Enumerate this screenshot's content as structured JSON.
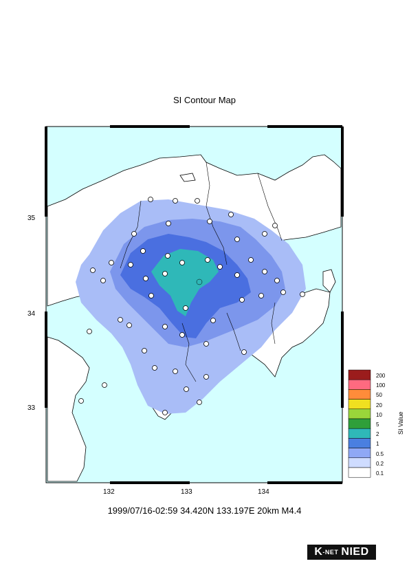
{
  "title": "SI Contour Map",
  "caption": "1999/07/16-02:59 34.420N 133.197E 20km M4.4",
  "axes": {
    "lat_ticks": [
      {
        "label": "35",
        "value": 35
      },
      {
        "label": "34",
        "value": 34
      },
      {
        "label": "33",
        "value": 33
      }
    ],
    "lon_ticks": [
      {
        "label": "132",
        "value": 132
      },
      {
        "label": "133",
        "value": 133
      },
      {
        "label": "134",
        "value": 134
      }
    ]
  },
  "legend": {
    "title": "SI Value",
    "bins": [
      {
        "label": "200",
        "color": "#9b1c1c"
      },
      {
        "label": "100",
        "color": "#ff6a80"
      },
      {
        "label": "50",
        "color": "#ff8c3a"
      },
      {
        "label": "20",
        "color": "#f0e020"
      },
      {
        "label": "10",
        "color": "#9ad63a"
      },
      {
        "label": "5",
        "color": "#2f9f3a"
      },
      {
        "label": "2",
        "color": "#2fb8b8"
      },
      {
        "label": "1",
        "color": "#4a7fe0"
      },
      {
        "label": "0.5",
        "color": "#8fa8f5"
      },
      {
        "label": "0.2",
        "color": "#cfdcff"
      },
      {
        "label": "0.1",
        "color": "#ffffff"
      }
    ]
  },
  "colors": {
    "sea": "#d4ffff",
    "land": "#ffffff",
    "si_0_2": "#a9bdf7",
    "si_0_5": "#7c96ec",
    "si_1": "#4a6fe0",
    "si_2": "#2fb8b8"
  },
  "logo": {
    "k": "K",
    "net": "-NET",
    "nied": "NIED"
  }
}
